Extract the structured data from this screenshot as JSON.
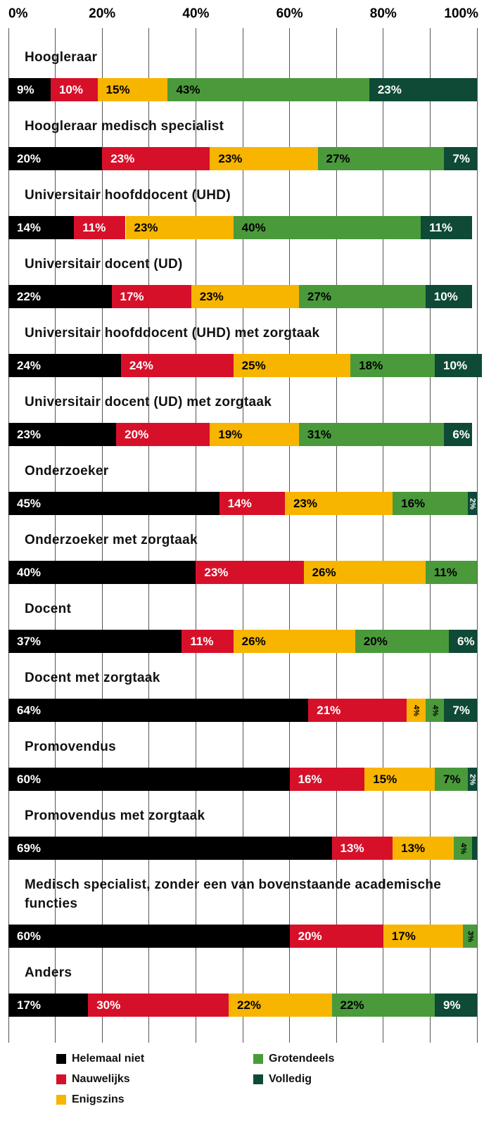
{
  "chart_data": {
    "type": "bar",
    "orientation": "horizontal",
    "stacked": true,
    "categories": [
      "Hoogleraar",
      "Hoogleraar medisch specialist",
      "Universitair hoofddocent (UHD)",
      "Universitair docent (UD)",
      "Universitair hoofddocent (UHD) met zorgtaak",
      "Universitair docent (UD) met zorgtaak",
      "Onderzoeker",
      "Onderzoeker met zorgtaak",
      "Docent",
      "Docent met zorgtaak",
      "Promovendus",
      "Promovendus met zorgtaak",
      "Medisch specialist, zonder een van bovenstaande academische functies",
      "Anders"
    ],
    "series": [
      {
        "name": "Helemaal niet",
        "color": "#000000",
        "label_color": "#ffffff",
        "values": [
          9,
          20,
          14,
          22,
          24,
          23,
          45,
          40,
          37,
          64,
          60,
          69,
          60,
          17
        ],
        "value_labels": [
          "9%",
          "20%",
          "14%",
          "22%",
          "24%",
          "23%",
          "45%",
          "40%",
          "37%",
          "64%",
          "60%",
          "69%",
          "60%",
          "17%"
        ]
      },
      {
        "name": "Nauwelijks",
        "color": "#d7102a",
        "label_color": "#ffffff",
        "values": [
          10,
          23,
          11,
          17,
          24,
          20,
          14,
          23,
          11,
          21,
          16,
          13,
          20,
          30
        ],
        "value_labels": [
          "10%",
          "23%",
          "11%",
          "17%",
          "24%",
          "20%",
          "14%",
          "23%",
          "11%",
          "21%",
          "16%",
          "13%",
          "20%",
          "30%"
        ]
      },
      {
        "name": "Enigszins",
        "color": "#f7b500",
        "label_color": "#000000",
        "values": [
          15,
          23,
          23,
          23,
          25,
          19,
          23,
          26,
          26,
          4,
          15,
          13,
          17,
          22
        ],
        "value_labels": [
          "15%",
          "23%",
          "23%",
          "23%",
          "25%",
          "19%",
          "23%",
          "26%",
          "26%",
          "4%",
          "15%",
          "13%",
          "17%",
          "22%"
        ]
      },
      {
        "name": "Grotendeels",
        "color": "#4a9a3c",
        "label_color": "#000000",
        "values": [
          43,
          27,
          40,
          27,
          18,
          31,
          16,
          11,
          20,
          4,
          7,
          4,
          3,
          22
        ],
        "value_labels": [
          "43%",
          "27%",
          "40%",
          "27%",
          "18%",
          "31%",
          "16%",
          "11%",
          "20%",
          "4%",
          "7%",
          "4%",
          "3%",
          "22%"
        ]
      },
      {
        "name": "Volledig",
        "color": "#0e4a36",
        "label_color": "#ffffff",
        "values": [
          23,
          7,
          11,
          10,
          10,
          6,
          2,
          null,
          6,
          7,
          2,
          1,
          null,
          9
        ],
        "value_labels": [
          "23%",
          "7%",
          "11%",
          "10%",
          "10%",
          "6%",
          "2%",
          null,
          "6%",
          "7%",
          "2%",
          null,
          null,
          "9%"
        ]
      }
    ],
    "xlim": [
      0,
      100
    ],
    "xticks": [
      {
        "value": 0,
        "label": "0%"
      },
      {
        "value": 20,
        "label": "20%"
      },
      {
        "value": 40,
        "label": "40%"
      },
      {
        "value": 60,
        "label": "60%"
      },
      {
        "value": 80,
        "label": "80%"
      },
      {
        "value": 100,
        "label": "100%"
      }
    ],
    "minor_xticks": [
      10,
      30,
      50,
      70,
      90
    ],
    "grid": true,
    "legend_position": "bottom"
  }
}
